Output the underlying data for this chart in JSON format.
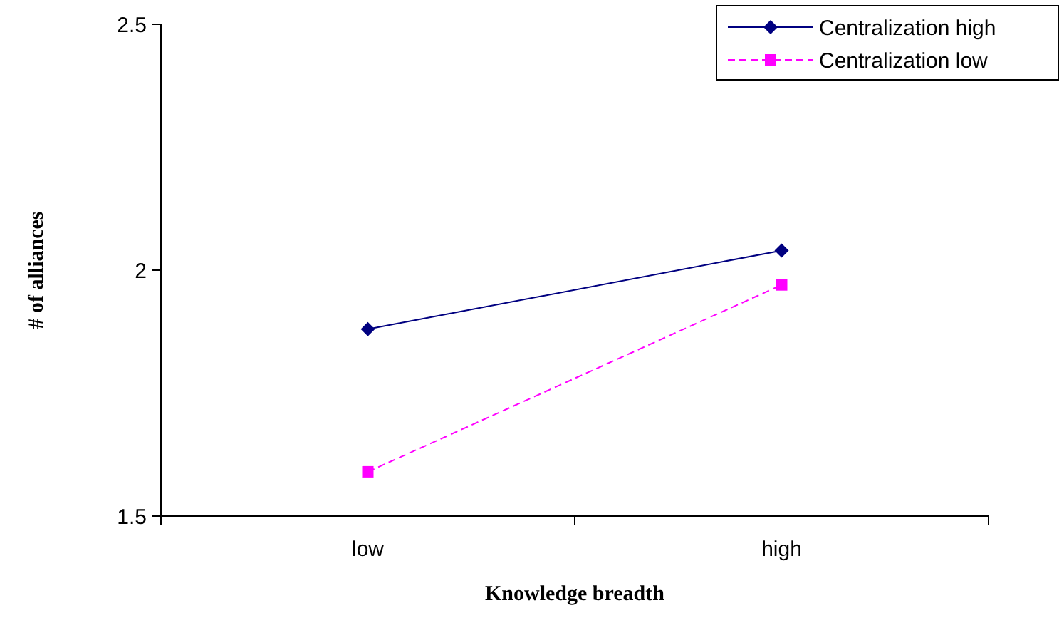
{
  "chart_data": {
    "type": "line",
    "xlabel": "Knowledge breadth",
    "ylabel": "# of alliances",
    "categories": [
      "low",
      "high"
    ],
    "ylim": [
      1.5,
      2.5
    ],
    "yticks": [
      1.5,
      2,
      2.5
    ],
    "legend": "top right",
    "grid": false,
    "series": [
      {
        "name": "Centralization high",
        "color": "#000080",
        "values": [
          1.88,
          2.04
        ],
        "marker": "diamond",
        "line_style": "solid"
      },
      {
        "name": "Centralization low",
        "color": "#ff00ff",
        "values": [
          1.59,
          1.97
        ],
        "marker": "square",
        "line_style": "dashed"
      }
    ]
  }
}
